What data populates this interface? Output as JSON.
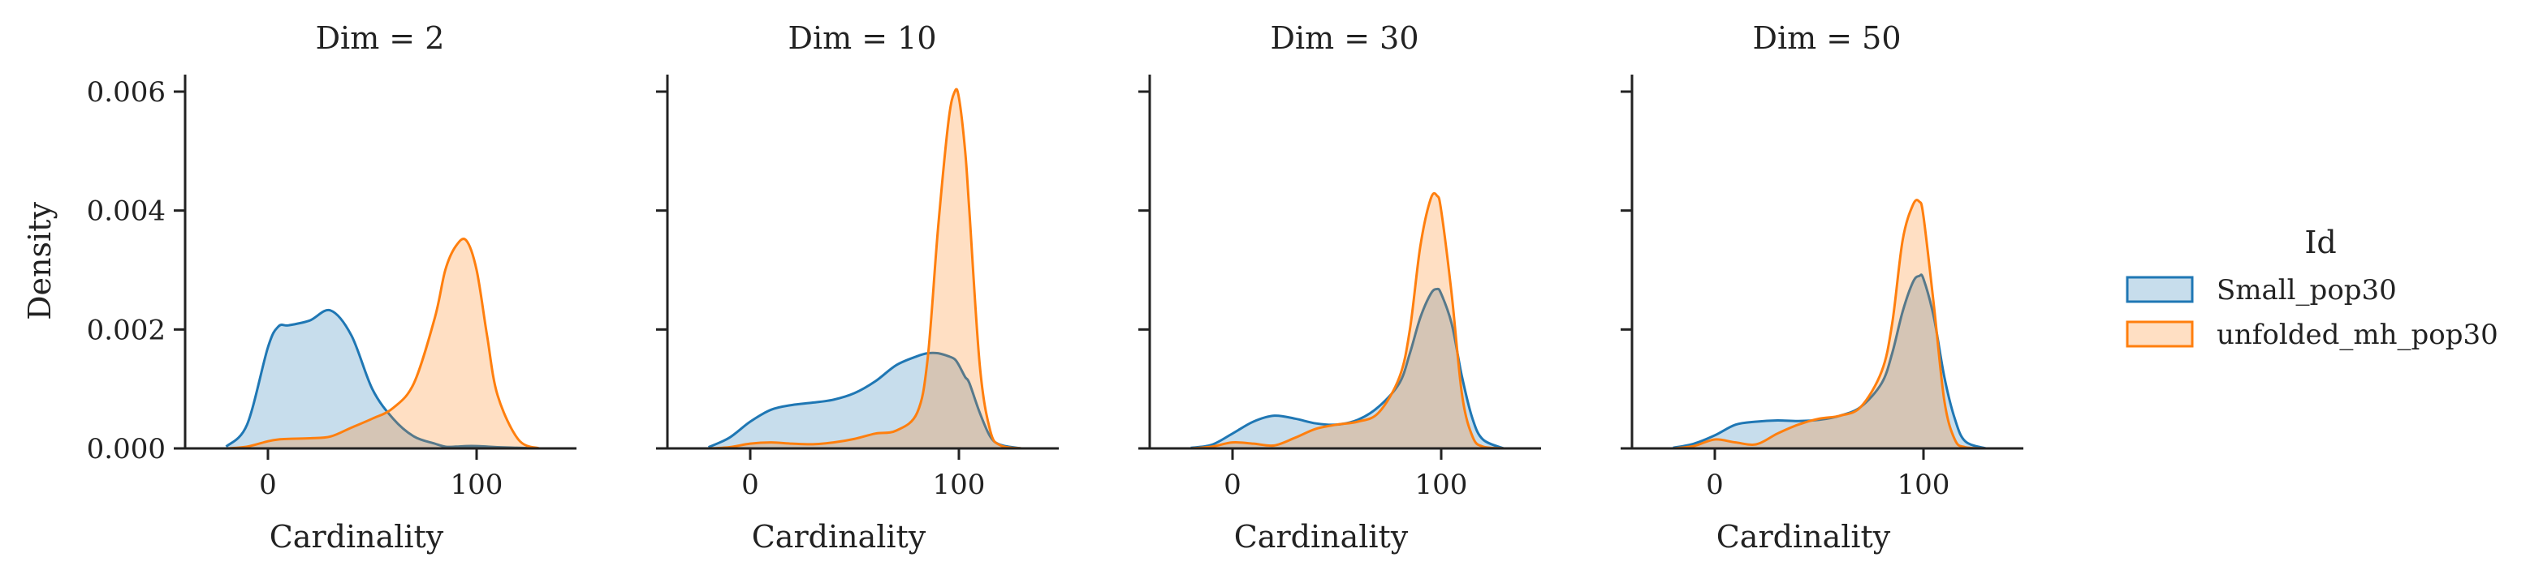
{
  "chart_data": {
    "type": "area",
    "subtype": "kde",
    "ylabel": "Density",
    "xlabel": "Cardinality",
    "xticks": [
      0,
      100
    ],
    "xlim": [
      -40,
      145
    ],
    "ylim": [
      0,
      0.0063
    ],
    "yticks": [
      0.0,
      0.002,
      0.004,
      0.006
    ],
    "ytick_labels": [
      "0.000",
      "0.002",
      "0.004",
      "0.006"
    ],
    "legend": {
      "title": "Id",
      "position": "right",
      "entries": [
        {
          "name": "Small_pop30",
          "color": "#1f77b4"
        },
        {
          "name": "unfolded_mh_pop30",
          "color": "#ff7f0e"
        }
      ]
    },
    "panels": [
      {
        "title": "Dim = 2",
        "x": [
          -20,
          -10,
          0,
          5,
          10,
          20,
          30,
          40,
          50,
          60,
          70,
          80,
          85,
          90,
          95,
          100,
          105,
          110,
          120,
          130
        ],
        "series": [
          {
            "name": "Small_pop30",
            "values": [
              3e-05,
              0.0004,
              0.0017,
              0.00205,
              0.00207,
              0.00215,
              0.00232,
              0.0019,
              0.001,
              0.0005,
              0.0002,
              8e-05,
              3e-05,
              3e-05,
              4e-05,
              4e-05,
              3e-05,
              2e-05,
              1e-05,
              0.0
            ]
          },
          {
            "name": "unfolded_mh_pop30",
            "values": [
              0.0,
              3e-05,
              0.00012,
              0.00015,
              0.00016,
              0.00017,
              0.0002,
              0.00035,
              0.0005,
              0.00068,
              0.0011,
              0.0022,
              0.003,
              0.0034,
              0.0035,
              0.003,
              0.0019,
              0.0009,
              0.00015,
              0.0
            ]
          }
        ]
      },
      {
        "title": "Dim = 10",
        "x": [
          -20,
          -10,
          0,
          10,
          20,
          30,
          40,
          50,
          60,
          70,
          80,
          85,
          90,
          95,
          98,
          100,
          103,
          105,
          110,
          115,
          120,
          130
        ],
        "series": [
          {
            "name": "Small_pop30",
            "values": [
              2e-05,
              0.00018,
              0.00045,
              0.00065,
              0.00073,
              0.00077,
              0.00082,
              0.00093,
              0.00113,
              0.0014,
              0.00155,
              0.0016,
              0.0016,
              0.00155,
              0.0015,
              0.0014,
              0.0012,
              0.0011,
              0.0006,
              0.0002,
              6e-05,
              0.0
            ]
          },
          {
            "name": "unfolded_mh_pop30",
            "values": [
              0.0,
              2e-05,
              8e-05,
              0.0001,
              8e-05,
              7e-05,
              0.0001,
              0.00016,
              0.00025,
              0.0003,
              0.0006,
              0.0015,
              0.0037,
              0.0055,
              0.006,
              0.0059,
              0.005,
              0.004,
              0.0014,
              0.0003,
              5e-05,
              0.0
            ]
          }
        ]
      },
      {
        "title": "Dim = 30",
        "x": [
          -20,
          -10,
          0,
          10,
          20,
          30,
          40,
          50,
          60,
          70,
          80,
          85,
          90,
          95,
          98,
          100,
          105,
          110,
          115,
          120,
          130
        ],
        "series": [
          {
            "name": "Small_pop30",
            "values": [
              1e-05,
              6e-05,
              0.00025,
              0.00045,
              0.00055,
              0.0005,
              0.00042,
              0.0004,
              0.00048,
              0.0007,
              0.0011,
              0.0016,
              0.0022,
              0.0026,
              0.00268,
              0.0026,
              0.0021,
              0.0012,
              0.0005,
              0.00015,
              0.0
            ]
          },
          {
            "name": "unfolded_mh_pop30",
            "values": [
              0.0,
              3e-05,
              0.0001,
              8e-05,
              5e-05,
              0.00018,
              0.00033,
              0.0004,
              0.00045,
              0.0006,
              0.0012,
              0.002,
              0.0034,
              0.0042,
              0.00425,
              0.004,
              0.0026,
              0.0009,
              0.0002,
              3e-05,
              0.0
            ]
          }
        ]
      },
      {
        "title": "Dim = 50",
        "x": [
          -20,
          -10,
          0,
          10,
          20,
          30,
          40,
          50,
          60,
          70,
          80,
          85,
          90,
          95,
          98,
          100,
          105,
          110,
          115,
          120,
          130
        ],
        "series": [
          {
            "name": "Small_pop30",
            "values": [
              1e-05,
              8e-05,
              0.00022,
              0.0004,
              0.00045,
              0.00047,
              0.00046,
              0.00048,
              0.00055,
              0.0007,
              0.0011,
              0.0016,
              0.0023,
              0.0028,
              0.0029,
              0.00285,
              0.0022,
              0.0012,
              0.0005,
              0.00012,
              0.0
            ]
          },
          {
            "name": "unfolded_mh_pop30",
            "values": [
              0.0,
              4e-05,
              0.00015,
              0.0001,
              7e-05,
              0.00025,
              0.0004,
              0.0005,
              0.00055,
              0.0007,
              0.0013,
              0.0021,
              0.0035,
              0.0041,
              0.00415,
              0.0039,
              0.0024,
              0.0008,
              0.00015,
              2e-05,
              0.0
            ]
          }
        ]
      }
    ]
  }
}
